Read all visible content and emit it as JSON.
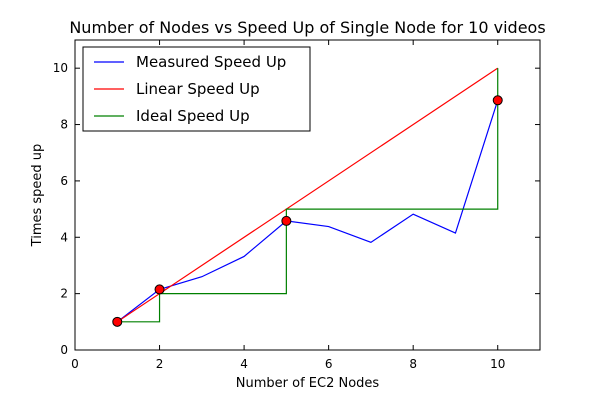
{
  "chart_data": {
    "type": "line",
    "title": "Number of Nodes vs Speed Up of Single Node for 10 videos",
    "xlabel": "Number of EC2 Nodes",
    "ylabel": "Times speed up",
    "xlim": [
      0,
      11
    ],
    "ylim": [
      0,
      11
    ],
    "xticks": [
      0,
      2,
      4,
      6,
      8,
      10
    ],
    "yticks": [
      0,
      2,
      4,
      6,
      8,
      10
    ],
    "grid": false,
    "legend_position": "top-left",
    "series": [
      {
        "name": "Measured Speed Up",
        "color": "#0000ff",
        "x": [
          1,
          2,
          3,
          4,
          5,
          6,
          7,
          8,
          9,
          10
        ],
        "y": [
          1.0,
          2.15,
          2.6,
          3.32,
          4.58,
          4.38,
          3.82,
          4.82,
          4.15,
          8.86
        ]
      },
      {
        "name": "Linear Speed Up",
        "color": "#ff0000",
        "x": [
          1,
          10
        ],
        "y": [
          1,
          10
        ]
      },
      {
        "name": "Ideal Speed Up",
        "color": "#008000",
        "x": [
          1,
          2,
          2,
          5,
          5,
          10,
          10
        ],
        "y": [
          1,
          1,
          2,
          2,
          5,
          5,
          10
        ]
      }
    ],
    "markers": {
      "color": "#ff0000",
      "x": [
        1,
        2,
        5,
        10
      ],
      "y": [
        1.0,
        2.15,
        4.58,
        8.86
      ]
    }
  }
}
